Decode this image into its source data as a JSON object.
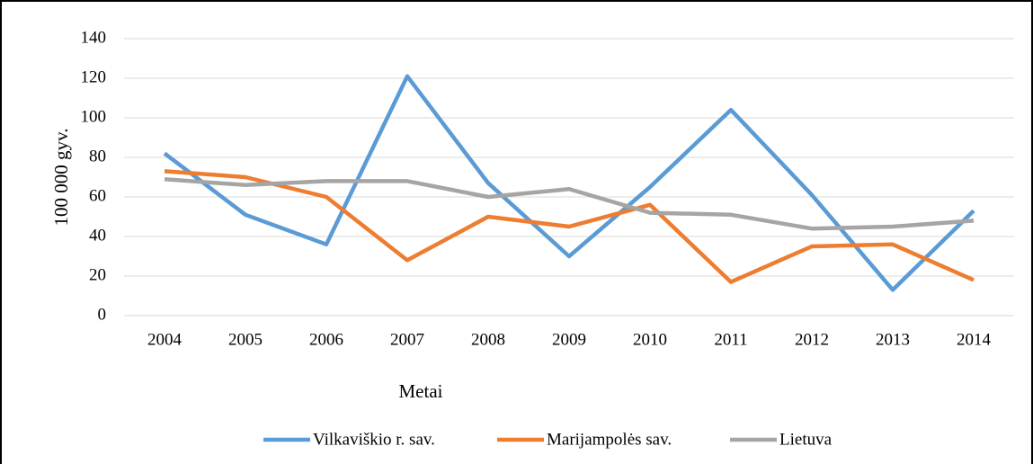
{
  "chart_data": {
    "type": "line",
    "x_label": "Metai",
    "y_label": "100 000 gyv.",
    "categories": [
      "2004",
      "2005",
      "2006",
      "2007",
      "2008",
      "2009",
      "2010",
      "2011",
      "2012",
      "2013",
      "2014"
    ],
    "series": [
      {
        "name": "Vilkaviškio r. sav.",
        "color": "#5b9bd5",
        "values": [
          82,
          51,
          36,
          121,
          67,
          30,
          65,
          104,
          61,
          13,
          53
        ]
      },
      {
        "name": "Marijampolės sav.",
        "color": "#ed7d31",
        "values": [
          73,
          70,
          60,
          28,
          50,
          45,
          56,
          17,
          35,
          36,
          18
        ]
      },
      {
        "name": "Lietuva",
        "color": "#a5a5a5",
        "values": [
          69,
          66,
          68,
          68,
          60,
          64,
          52,
          51,
          44,
          45,
          48
        ]
      }
    ],
    "ylim": [
      0,
      140
    ],
    "yticks": [
      0,
      20,
      40,
      60,
      80,
      100,
      120,
      140
    ],
    "grid": true,
    "legend": "bottom"
  }
}
